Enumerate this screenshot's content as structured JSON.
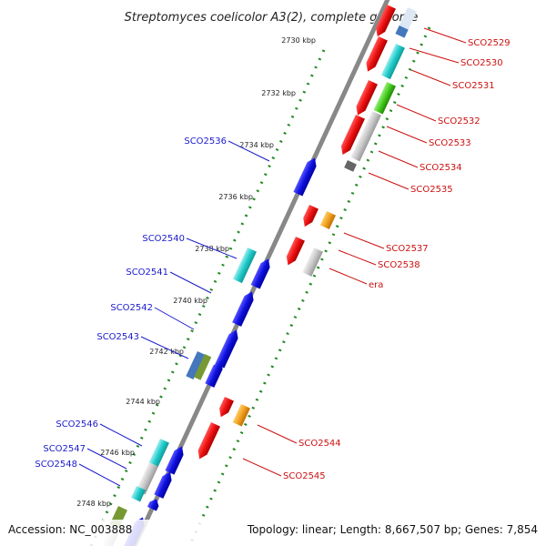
{
  "header": {
    "title": "Streptomyces coelicolor A3(2), complete genome"
  },
  "footer": {
    "accession": "Accession: NC_003888",
    "summary": "Topology: linear; Length: 8,667,507 bp; Genes: 7,854"
  },
  "ruler": {
    "ticks": [
      "2730 kbp",
      "2732 kbp",
      "2734 kbp",
      "2736 kbp",
      "2738 kbp",
      "2740 kbp",
      "2742 kbp",
      "2744 kbp",
      "2746 kbp",
      "2748 kbp"
    ]
  },
  "genes": {
    "left_labels": [
      "SCO2536",
      "SCO2540",
      "SCO2541",
      "SCO2542",
      "SCO2543",
      "SCO2546",
      "SCO2547",
      "SCO2548"
    ],
    "right_labels": [
      "SCO2529",
      "SCO2530",
      "SCO2531",
      "SCO2532",
      "SCO2533",
      "SCO2534",
      "SCO2535",
      "SCO2537",
      "SCO2538",
      "era",
      "SCO2544",
      "SCO2545"
    ]
  },
  "colors": {
    "forward_gene": "#1010e0",
    "reverse_gene": "#ee1111",
    "left_label": "#1b1bcc",
    "right_label": "#cc1111",
    "backbone": "#888888",
    "track_dots": "#228822",
    "cyan": "#22cccc",
    "teal": "#33bbbb",
    "orange": "#f0a020",
    "green": "#44cc22",
    "olive": "#779933",
    "steelblue": "#4477bb",
    "lightgray": "#c8c8c8",
    "darkgray": "#666666"
  }
}
